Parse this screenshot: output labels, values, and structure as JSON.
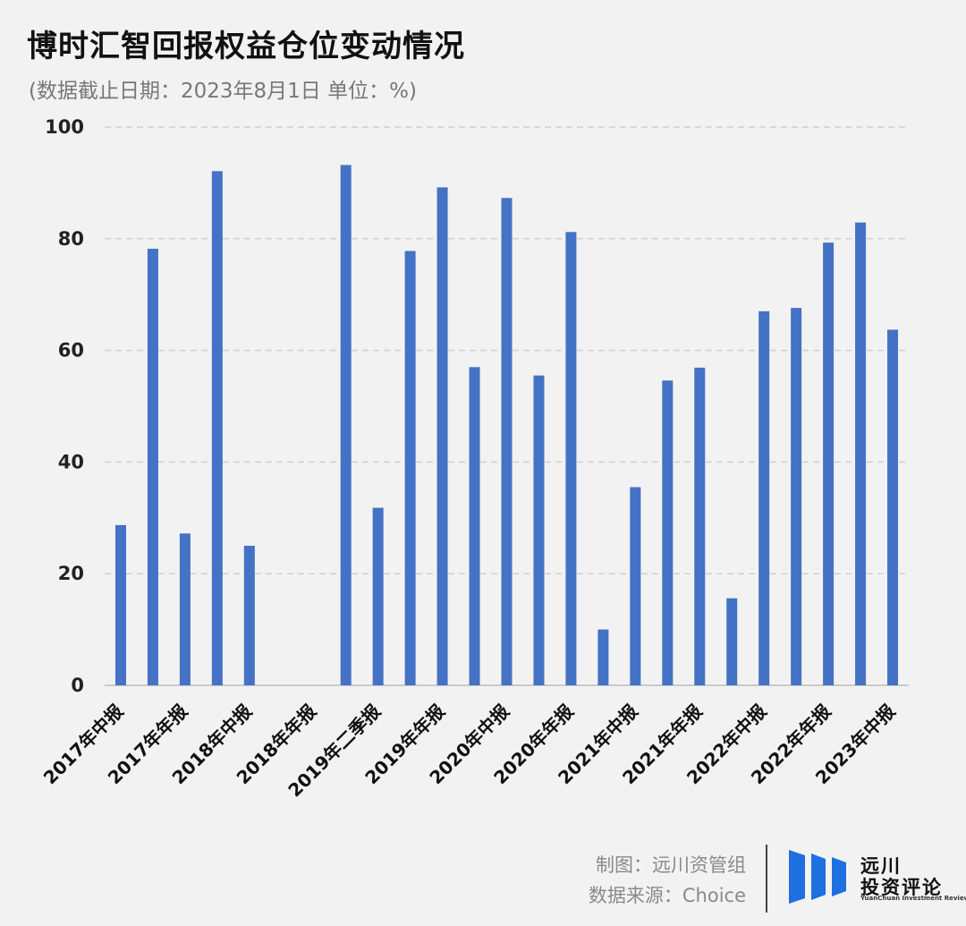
{
  "header": {
    "title": "博时汇智回报权益仓位变动情况",
    "subtitle": "(数据截止日期：2023年8月1日  单位：%)"
  },
  "footer": {
    "maker": "制图：远川资管组",
    "source": "数据来源：Choice",
    "logo_cn_line1": "远川",
    "logo_cn_line2": "投资评论",
    "logo_en": "YuanChuan Investment Review",
    "logo_color": "#1e6fe0"
  },
  "chart_data": {
    "type": "bar",
    "title": "博时汇智回报权益仓位变动情况",
    "subtitle": "(数据截止日期：2023年8月1日  单位：%)",
    "xlabel": "",
    "ylabel": "",
    "ylim": [
      0,
      100
    ],
    "yticks": [
      0,
      20,
      40,
      60,
      80,
      100
    ],
    "grid": true,
    "bar_color": "#4472c4",
    "categories": [
      "2017年中报",
      "",
      "2017年年报",
      "",
      "2018年中报",
      "",
      "2018年年报",
      "",
      "2019年二季报",
      "",
      "2019年年报",
      "",
      "2020年中报",
      "",
      "2020年年报",
      "",
      "2021年中报",
      "",
      "2021年年报",
      "",
      "2022年中报",
      "",
      "2022年年报",
      "",
      "2023年中报"
    ],
    "values": [
      28.7,
      78.2,
      27.2,
      92.1,
      25.0,
      0,
      0,
      93.2,
      31.8,
      77.8,
      89.2,
      57.0,
      87.3,
      55.5,
      81.2,
      10.0,
      35.5,
      54.6,
      56.9,
      15.6,
      67.0,
      67.6,
      79.3,
      82.9,
      63.7
    ]
  }
}
